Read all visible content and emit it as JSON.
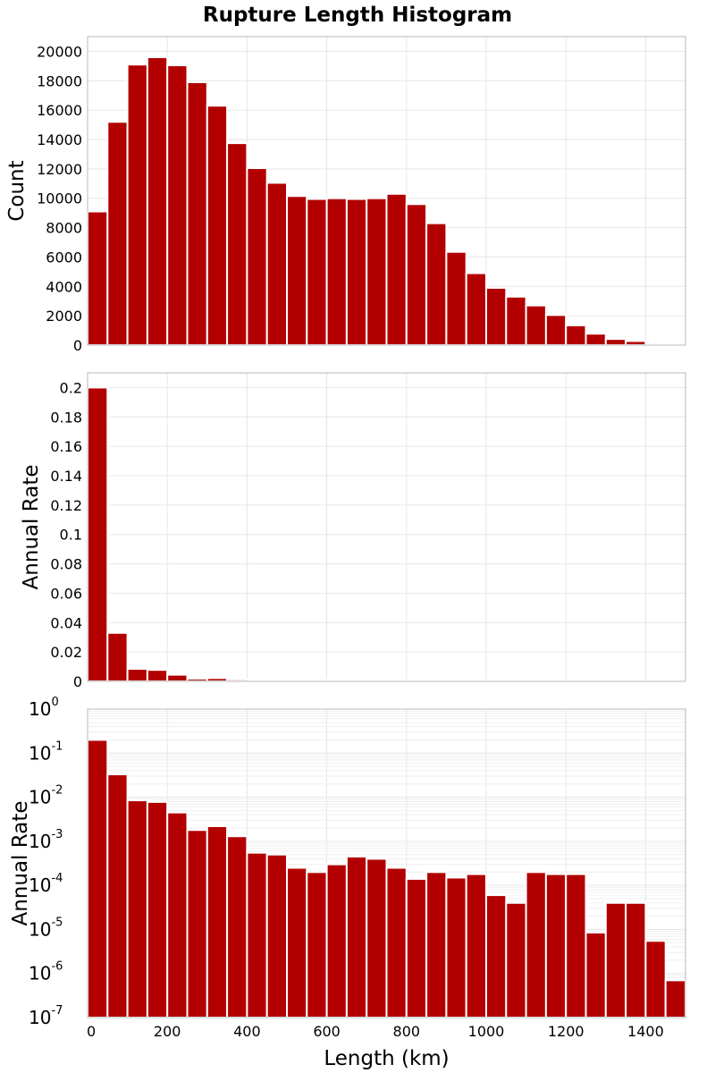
{
  "title": "Rupture Length Histogram",
  "colors": {
    "bar": "#b20000",
    "grid": "#e6e6e6",
    "frame": "#b8b8b8"
  },
  "chart_data": [
    {
      "type": "bar",
      "panel": "top",
      "title": "Rupture Length Histogram",
      "xlabel": "",
      "ylabel": "Count",
      "xlim": [
        0,
        1500
      ],
      "ylim": [
        0,
        21000
      ],
      "bin_width": 50,
      "x": [
        25,
        75,
        125,
        175,
        225,
        275,
        325,
        375,
        425,
        475,
        525,
        575,
        625,
        675,
        725,
        775,
        825,
        875,
        925,
        975,
        1025,
        1075,
        1125,
        1175,
        1225,
        1275,
        1325,
        1375,
        1425,
        1475
      ],
      "values": [
        9100,
        15200,
        19100,
        19600,
        19050,
        17900,
        16300,
        13750,
        12050,
        11050,
        10150,
        9950,
        10000,
        9950,
        10000,
        10300,
        9600,
        8300,
        6350,
        4900,
        3900,
        3300,
        2700,
        2050,
        1350,
        780,
        420,
        280,
        70,
        0
      ],
      "yticks": [
        0,
        2000,
        4000,
        6000,
        8000,
        10000,
        12000,
        14000,
        16000,
        18000,
        20000
      ],
      "ytick_labels": [
        "0",
        "2000",
        "4000",
        "6000",
        "8000",
        "10000",
        "12000",
        "14000",
        "16000",
        "18000",
        "20000"
      ]
    },
    {
      "type": "bar",
      "panel": "middle",
      "xlabel": "",
      "ylabel": "Annual Rate",
      "xlim": [
        0,
        1500
      ],
      "ylim": [
        0,
        0.21
      ],
      "bin_width": 50,
      "x": [
        25,
        75,
        125,
        175,
        225,
        275,
        325,
        375,
        425,
        475,
        525,
        575,
        625,
        675,
        725,
        775,
        825,
        875,
        925,
        975,
        1025,
        1075,
        1125,
        1175,
        1225,
        1275,
        1325,
        1375,
        1425,
        1475
      ],
      "values": [
        0.2,
        0.033,
        0.0085,
        0.0078,
        0.0045,
        0.0018,
        0.0022,
        0.0013,
        0.00055,
        0.0005,
        0.00025,
        0.0002,
        0.0003,
        0.00045,
        0.0004,
        0.00025,
        0.00014,
        0.0002,
        0.00015,
        0.00018,
        6e-05,
        4e-05,
        0.0002,
        0.00018,
        0.00018,
        8.5e-06,
        4e-05,
        4e-05,
        5.5e-06,
        7e-07
      ],
      "yticks": [
        0,
        0.02,
        0.04,
        0.06,
        0.08,
        0.1,
        0.12,
        0.14,
        0.16,
        0.18,
        0.2
      ],
      "ytick_labels": [
        "0",
        "0.02",
        "0.04",
        "0.06",
        "0.08",
        "0.1",
        "0.12",
        "0.14",
        "0.16",
        "0.18",
        "0.2"
      ]
    },
    {
      "type": "bar",
      "panel": "bottom",
      "scale": "log",
      "xlabel": "Length (km)",
      "ylabel": "Annual Rate",
      "xlim": [
        0,
        1500
      ],
      "ylim": [
        1e-07,
        1
      ],
      "bin_width": 50,
      "x": [
        25,
        75,
        125,
        175,
        225,
        275,
        325,
        375,
        425,
        475,
        525,
        575,
        625,
        675,
        725,
        775,
        825,
        875,
        925,
        975,
        1025,
        1075,
        1125,
        1175,
        1225,
        1275,
        1325,
        1375,
        1425,
        1475
      ],
      "values": [
        0.2,
        0.033,
        0.0085,
        0.0078,
        0.0045,
        0.0018,
        0.0022,
        0.0013,
        0.00055,
        0.0005,
        0.00025,
        0.0002,
        0.0003,
        0.00045,
        0.0004,
        0.00025,
        0.00014,
        0.0002,
        0.00015,
        0.00018,
        6e-05,
        4e-05,
        0.0002,
        0.00018,
        0.00018,
        8.5e-06,
        4e-05,
        4e-05,
        5.5e-06,
        7e-07
      ],
      "ytick_bases": [
        "10",
        "10",
        "10",
        "10",
        "10",
        "10",
        "10",
        "10"
      ],
      "ytick_exponents": [
        "-7",
        "-6",
        "-5",
        "-4",
        "-3",
        "-2",
        "-1",
        "0"
      ],
      "xticks": [
        0,
        200,
        400,
        600,
        800,
        1000,
        1200,
        1400
      ],
      "xtick_labels": [
        "0",
        "200",
        "400",
        "600",
        "800",
        "1000",
        "1200",
        "1400"
      ]
    }
  ]
}
